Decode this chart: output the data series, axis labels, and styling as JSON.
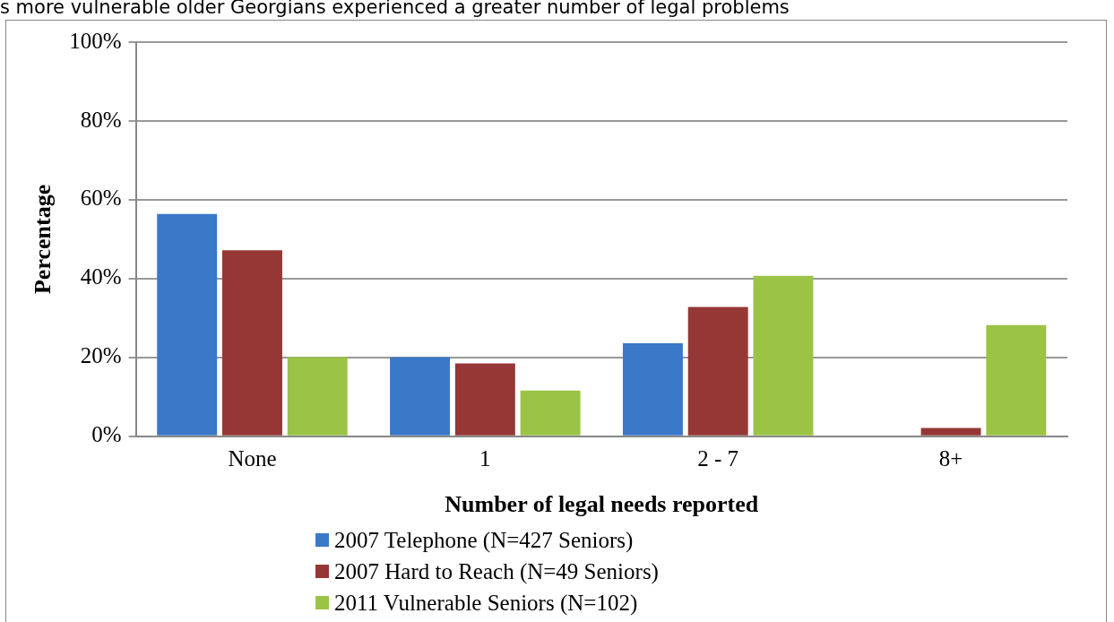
{
  "chart_data": {
    "type": "bar",
    "title": "s more vulnerable older Georgians experienced a greater number of legal problems",
    "xlabel": "Number of legal needs reported",
    "ylabel": "Percentage",
    "categories": [
      "None",
      "1",
      "2 - 7",
      "8+"
    ],
    "series": [
      {
        "name": "2007 Telephone (N=427 Seniors)",
        "color": "#3a78c8",
        "values": [
          56.4,
          20.1,
          23.6,
          0
        ]
      },
      {
        "name": "2007 Hard to Reach (N=49 Seniors)",
        "color": "#953735",
        "values": [
          47.2,
          18.5,
          32.8,
          2.1
        ]
      },
      {
        "name": "2011 Vulnerable Seniors (N=102)",
        "color": "#9bc346",
        "values": [
          20.1,
          11.6,
          40.7,
          28.2
        ]
      }
    ],
    "ylim": [
      0,
      100
    ],
    "yticks": [
      {
        "value": 0,
        "label": "0%"
      },
      {
        "value": 20,
        "label": "20%"
      },
      {
        "value": 40,
        "label": "40%"
      },
      {
        "value": 60,
        "label": "60%"
      },
      {
        "value": 80,
        "label": "80%"
      },
      {
        "value": 100,
        "label": "100%"
      }
    ],
    "grid": "y",
    "legend": "bottom"
  }
}
